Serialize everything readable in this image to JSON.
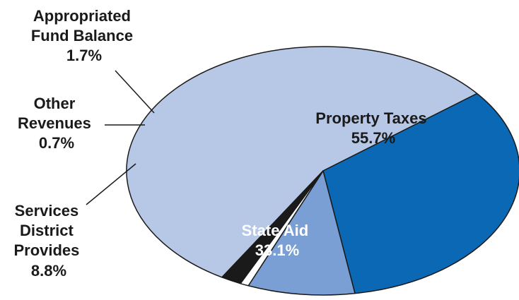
{
  "chart_data": {
    "type": "pie",
    "slices": [
      {
        "label": "Property Taxes",
        "value": 55.7,
        "display": "55.7%",
        "color": "#b7c8e6"
      },
      {
        "label": "State Aid",
        "value": 33.1,
        "display": "33.1%",
        "color": "#0a68b5"
      },
      {
        "label": "Services District Provides",
        "value": 8.8,
        "display": "8.8%",
        "color": "#7a9fd4"
      },
      {
        "label": "Other Revenues",
        "value": 0.7,
        "display": "0.7%",
        "color": "#ffffff"
      },
      {
        "label": "Appropriated Fund Balance",
        "value": 1.7,
        "display": "1.7%",
        "color": "#1a1a1a"
      }
    ],
    "labels": {
      "property_taxes": [
        "Property Taxes",
        "55.7%"
      ],
      "state_aid": [
        "State Aid",
        "33.1%"
      ],
      "services": [
        "Services",
        "District",
        "Provides",
        "8.8%"
      ],
      "other": [
        "Other",
        "Revenues",
        "0.7%"
      ],
      "fund_balance": [
        "Appropriated",
        "Fund Balance",
        "1.7%"
      ]
    }
  }
}
